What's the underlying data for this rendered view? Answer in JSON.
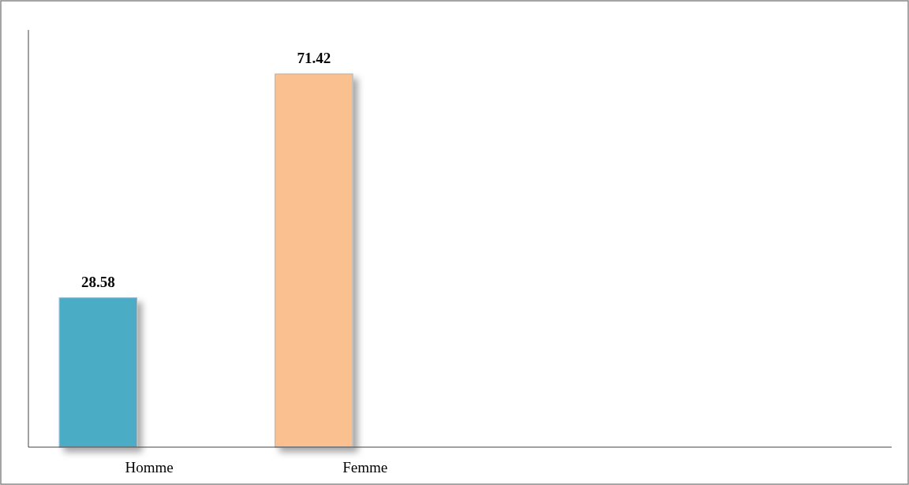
{
  "chart_data": {
    "type": "bar",
    "categories": [
      "Homme",
      "Femme",
      null,
      null
    ],
    "values": [
      28.58,
      71.42,
      null,
      null
    ],
    "colors": [
      "#4bacc6",
      "#fac090",
      null,
      null
    ],
    "data_labels": true
  }
}
